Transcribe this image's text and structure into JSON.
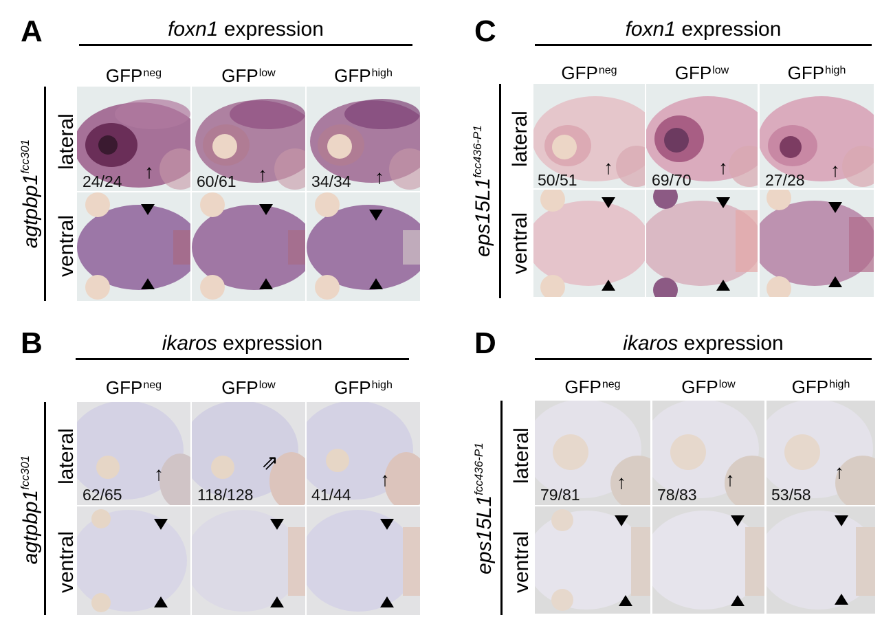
{
  "panels": {
    "A": {
      "letter": "A",
      "title_gene": "foxn1",
      "title_rest": " expression",
      "gene": "agtpbp1",
      "allele": "fcc301",
      "columns": [
        {
          "main": "GFP",
          "sup": "neg"
        },
        {
          "main": "GFP",
          "sup": "low"
        },
        {
          "main": "GFP",
          "sup": "high"
        }
      ],
      "rows": [
        "lateral",
        "ventral"
      ],
      "counts": [
        "24/24",
        "60/61",
        "34/34"
      ]
    },
    "B": {
      "letter": "B",
      "title_gene": "ikaros",
      "title_rest": " expression",
      "gene": "agtpbp1",
      "allele": "fcc301",
      "columns": [
        {
          "main": "GFP",
          "sup": "neg"
        },
        {
          "main": "GFP",
          "sup": "low"
        },
        {
          "main": "GFP",
          "sup": "high"
        }
      ],
      "rows": [
        "lateral",
        "ventral"
      ],
      "counts": [
        "62/65",
        "118/128",
        "41/44"
      ]
    },
    "C": {
      "letter": "C",
      "title_gene": "foxn1",
      "title_rest": " expression",
      "gene": "eps15L1",
      "allele": "fcc436-P1",
      "columns": [
        {
          "main": "GFP",
          "sup": "neg"
        },
        {
          "main": "GFP",
          "sup": "low"
        },
        {
          "main": "GFP",
          "sup": "high"
        }
      ],
      "rows": [
        "lateral",
        "ventral"
      ],
      "counts": [
        "50/51",
        "69/70",
        "27/28"
      ]
    },
    "D": {
      "letter": "D",
      "title_gene": "ikaros",
      "title_rest": " expression",
      "gene": "eps15L1",
      "allele": "fcc436-P1",
      "columns": [
        {
          "main": "GFP",
          "sup": "neg"
        },
        {
          "main": "GFP",
          "sup": "low"
        },
        {
          "main": "GFP",
          "sup": "high"
        }
      ],
      "rows": [
        "lateral",
        "ventral"
      ],
      "counts": [
        "79/81",
        "78/83",
        "53/58"
      ]
    }
  },
  "stain_colors": {
    "foxn1_background": "#e6ecec",
    "foxn1_tissue": "#8a5a8c",
    "ikaros_background": "#d6d6d8",
    "ikaros_tissue": "#c6c6da",
    "eye": "#e8d8c8"
  },
  "icons": [
    "arrow-up-icon",
    "arrowhead-down-icon",
    "arrowhead-up-icon",
    "double-arrow-icon"
  ]
}
